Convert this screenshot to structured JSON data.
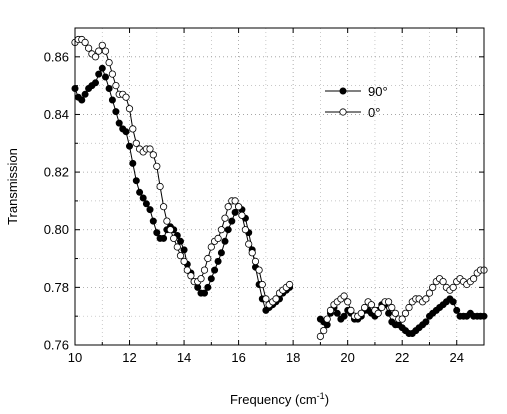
{
  "chart_data": {
    "type": "scatter",
    "title": "",
    "xlabel": "Frequency (cm",
    "xlabel_sup": "-1",
    "xlabel_close": ")",
    "ylabel": "Transmission",
    "xlim": [
      10,
      25
    ],
    "ylim": [
      0.76,
      0.87
    ],
    "x_ticks": [
      10,
      12,
      14,
      16,
      18,
      20,
      22,
      24
    ],
    "y_ticks": [
      0.76,
      0.78,
      0.8,
      0.82,
      0.84,
      0.86
    ],
    "x_tick_labels": [
      "10",
      "12",
      "14",
      "16",
      "18",
      "20",
      "22",
      "24"
    ],
    "y_tick_labels": [
      "0.76",
      "0.78",
      "0.80",
      "0.82",
      "0.84",
      "0.86"
    ],
    "grid": true,
    "legend_position": "center-right",
    "series": [
      {
        "name": "90°",
        "marker": "filled-circle",
        "color": "#000000",
        "segments": [
          [
            [
              10.0,
              0.849
            ],
            [
              10.12,
              0.846
            ],
            [
              10.25,
              0.845
            ],
            [
              10.37,
              0.847
            ],
            [
              10.5,
              0.849
            ],
            [
              10.62,
              0.85
            ],
            [
              10.75,
              0.851
            ],
            [
              10.87,
              0.854
            ],
            [
              11.0,
              0.856
            ],
            [
              11.12,
              0.853
            ],
            [
              11.25,
              0.849
            ],
            [
              11.37,
              0.845
            ],
            [
              11.5,
              0.841
            ],
            [
              11.62,
              0.837
            ],
            [
              11.75,
              0.835
            ],
            [
              11.87,
              0.834
            ],
            [
              12.0,
              0.829
            ],
            [
              12.12,
              0.823
            ],
            [
              12.25,
              0.817
            ],
            [
              12.37,
              0.813
            ],
            [
              12.5,
              0.811
            ],
            [
              12.62,
              0.809
            ],
            [
              12.75,
              0.807
            ],
            [
              12.87,
              0.803
            ],
            [
              13.0,
              0.799
            ],
            [
              13.12,
              0.797
            ],
            [
              13.25,
              0.797
            ],
            [
              13.37,
              0.8
            ],
            [
              13.5,
              0.801
            ],
            [
              13.62,
              0.8
            ],
            [
              13.75,
              0.798
            ],
            [
              13.87,
              0.796
            ],
            [
              14.0,
              0.793
            ],
            [
              14.12,
              0.788
            ],
            [
              14.25,
              0.785
            ],
            [
              14.37,
              0.782
            ],
            [
              14.5,
              0.78
            ],
            [
              14.62,
              0.778
            ],
            [
              14.75,
              0.778
            ],
            [
              14.87,
              0.78
            ],
            [
              15.0,
              0.783
            ],
            [
              15.12,
              0.786
            ],
            [
              15.25,
              0.789
            ],
            [
              15.37,
              0.792
            ],
            [
              15.5,
              0.796
            ],
            [
              15.62,
              0.8
            ],
            [
              15.75,
              0.803
            ],
            [
              15.87,
              0.806
            ],
            [
              16.0,
              0.808
            ],
            [
              16.12,
              0.807
            ],
            [
              16.25,
              0.804
            ],
            [
              16.37,
              0.799
            ],
            [
              16.5,
              0.793
            ],
            [
              16.62,
              0.787
            ],
            [
              16.75,
              0.781
            ],
            [
              16.87,
              0.776
            ],
            [
              17.0,
              0.772
            ],
            [
              17.12,
              0.773
            ],
            [
              17.25,
              0.774
            ],
            [
              17.37,
              0.775
            ],
            [
              17.5,
              0.776
            ],
            [
              17.62,
              0.778
            ],
            [
              17.75,
              0.779
            ],
            [
              17.87,
              0.78
            ]
          ],
          [
            [
              19.0,
              0.769
            ],
            [
              19.12,
              0.768
            ],
            [
              19.25,
              0.767
            ],
            [
              19.37,
              0.771
            ],
            [
              19.5,
              0.773
            ],
            [
              19.62,
              0.771
            ],
            [
              19.75,
              0.769
            ],
            [
              19.87,
              0.77
            ],
            [
              20.0,
              0.772
            ],
            [
              20.12,
              0.771
            ],
            [
              20.25,
              0.769
            ],
            [
              20.37,
              0.769
            ],
            [
              20.5,
              0.77
            ],
            [
              20.62,
              0.772
            ],
            [
              20.75,
              0.772
            ],
            [
              20.87,
              0.771
            ],
            [
              21.0,
              0.77
            ],
            [
              21.12,
              0.772
            ],
            [
              21.25,
              0.774
            ],
            [
              21.37,
              0.774
            ],
            [
              21.5,
              0.771
            ],
            [
              21.62,
              0.768
            ],
            [
              21.75,
              0.767
            ],
            [
              21.87,
              0.767
            ],
            [
              22.0,
              0.766
            ],
            [
              22.12,
              0.765
            ],
            [
              22.25,
              0.764
            ],
            [
              22.37,
              0.764
            ],
            [
              22.5,
              0.765
            ],
            [
              22.62,
              0.766
            ],
            [
              22.75,
              0.767
            ],
            [
              22.87,
              0.768
            ],
            [
              23.0,
              0.77
            ],
            [
              23.12,
              0.771
            ],
            [
              23.25,
              0.772
            ],
            [
              23.37,
              0.773
            ],
            [
              23.5,
              0.774
            ],
            [
              23.62,
              0.775
            ],
            [
              23.75,
              0.776
            ],
            [
              23.87,
              0.775
            ],
            [
              24.0,
              0.772
            ],
            [
              24.12,
              0.77
            ],
            [
              24.25,
              0.77
            ],
            [
              24.37,
              0.77
            ],
            [
              24.5,
              0.771
            ],
            [
              24.62,
              0.77
            ],
            [
              24.75,
              0.77
            ],
            [
              24.87,
              0.77
            ],
            [
              25.0,
              0.77
            ]
          ]
        ]
      },
      {
        "name": "0°",
        "marker": "open-circle",
        "color": "#000000",
        "segments": [
          [
            [
              10.0,
              0.865
            ],
            [
              10.12,
              0.866
            ],
            [
              10.25,
              0.866
            ],
            [
              10.37,
              0.865
            ],
            [
              10.5,
              0.863
            ],
            [
              10.62,
              0.861
            ],
            [
              10.75,
              0.86
            ],
            [
              10.87,
              0.862
            ],
            [
              11.0,
              0.864
            ],
            [
              11.12,
              0.862
            ],
            [
              11.25,
              0.858
            ],
            [
              11.37,
              0.854
            ],
            [
              11.5,
              0.85
            ],
            [
              11.62,
              0.847
            ],
            [
              11.75,
              0.847
            ],
            [
              11.87,
              0.846
            ],
            [
              12.0,
              0.842
            ],
            [
              12.12,
              0.835
            ],
            [
              12.25,
              0.83
            ],
            [
              12.37,
              0.828
            ],
            [
              12.5,
              0.827
            ],
            [
              12.62,
              0.828
            ],
            [
              12.75,
              0.828
            ],
            [
              12.87,
              0.826
            ],
            [
              13.0,
              0.822
            ],
            [
              13.12,
              0.815
            ],
            [
              13.25,
              0.808
            ],
            [
              13.37,
              0.803
            ],
            [
              13.5,
              0.8
            ],
            [
              13.62,
              0.797
            ],
            [
              13.75,
              0.794
            ],
            [
              13.87,
              0.791
            ],
            [
              14.0,
              0.789
            ],
            [
              14.12,
              0.786
            ],
            [
              14.25,
              0.784
            ],
            [
              14.37,
              0.782
            ],
            [
              14.5,
              0.782
            ],
            [
              14.62,
              0.783
            ],
            [
              14.75,
              0.786
            ],
            [
              14.87,
              0.79
            ],
            [
              15.0,
              0.794
            ],
            [
              15.12,
              0.796
            ],
            [
              15.25,
              0.797
            ],
            [
              15.37,
              0.8
            ],
            [
              15.5,
              0.804
            ],
            [
              15.62,
              0.808
            ],
            [
              15.75,
              0.81
            ],
            [
              15.87,
              0.81
            ],
            [
              16.0,
              0.808
            ],
            [
              16.12,
              0.805
            ],
            [
              16.25,
              0.8
            ],
            [
              16.37,
              0.795
            ],
            [
              16.5,
              0.792
            ],
            [
              16.62,
              0.789
            ],
            [
              16.75,
              0.786
            ],
            [
              16.87,
              0.781
            ],
            [
              17.0,
              0.776
            ],
            [
              17.12,
              0.774
            ],
            [
              17.25,
              0.775
            ],
            [
              17.37,
              0.776
            ],
            [
              17.5,
              0.778
            ],
            [
              17.62,
              0.779
            ],
            [
              17.75,
              0.78
            ],
            [
              17.87,
              0.781
            ]
          ],
          [
            [
              19.0,
              0.763
            ],
            [
              19.12,
              0.765
            ],
            [
              19.25,
              0.769
            ],
            [
              19.37,
              0.772
            ],
            [
              19.5,
              0.774
            ],
            [
              19.62,
              0.775
            ],
            [
              19.75,
              0.776
            ],
            [
              19.87,
              0.777
            ],
            [
              20.0,
              0.775
            ],
            [
              20.12,
              0.772
            ],
            [
              20.25,
              0.77
            ],
            [
              20.37,
              0.77
            ],
            [
              20.5,
              0.771
            ],
            [
              20.62,
              0.773
            ],
            [
              20.75,
              0.775
            ],
            [
              20.87,
              0.774
            ],
            [
              21.0,
              0.772
            ],
            [
              21.12,
              0.771
            ],
            [
              21.25,
              0.773
            ],
            [
              21.37,
              0.775
            ],
            [
              21.5,
              0.775
            ],
            [
              21.62,
              0.773
            ],
            [
              21.75,
              0.771
            ],
            [
              21.87,
              0.769
            ],
            [
              22.0,
              0.769
            ],
            [
              22.12,
              0.771
            ],
            [
              22.25,
              0.773
            ],
            [
              22.37,
              0.775
            ],
            [
              22.5,
              0.776
            ],
            [
              22.62,
              0.776
            ],
            [
              22.75,
              0.775
            ],
            [
              22.87,
              0.776
            ],
            [
              23.0,
              0.778
            ],
            [
              23.12,
              0.78
            ],
            [
              23.25,
              0.782
            ],
            [
              23.37,
              0.783
            ],
            [
              23.5,
              0.782
            ],
            [
              23.62,
              0.78
            ],
            [
              23.75,
              0.779
            ],
            [
              23.87,
              0.78
            ],
            [
              24.0,
              0.782
            ],
            [
              24.12,
              0.783
            ],
            [
              24.25,
              0.782
            ],
            [
              24.37,
              0.781
            ],
            [
              24.5,
              0.782
            ],
            [
              24.62,
              0.783
            ],
            [
              24.75,
              0.785
            ],
            [
              24.87,
              0.786
            ],
            [
              25.0,
              0.786
            ]
          ]
        ]
      }
    ]
  }
}
